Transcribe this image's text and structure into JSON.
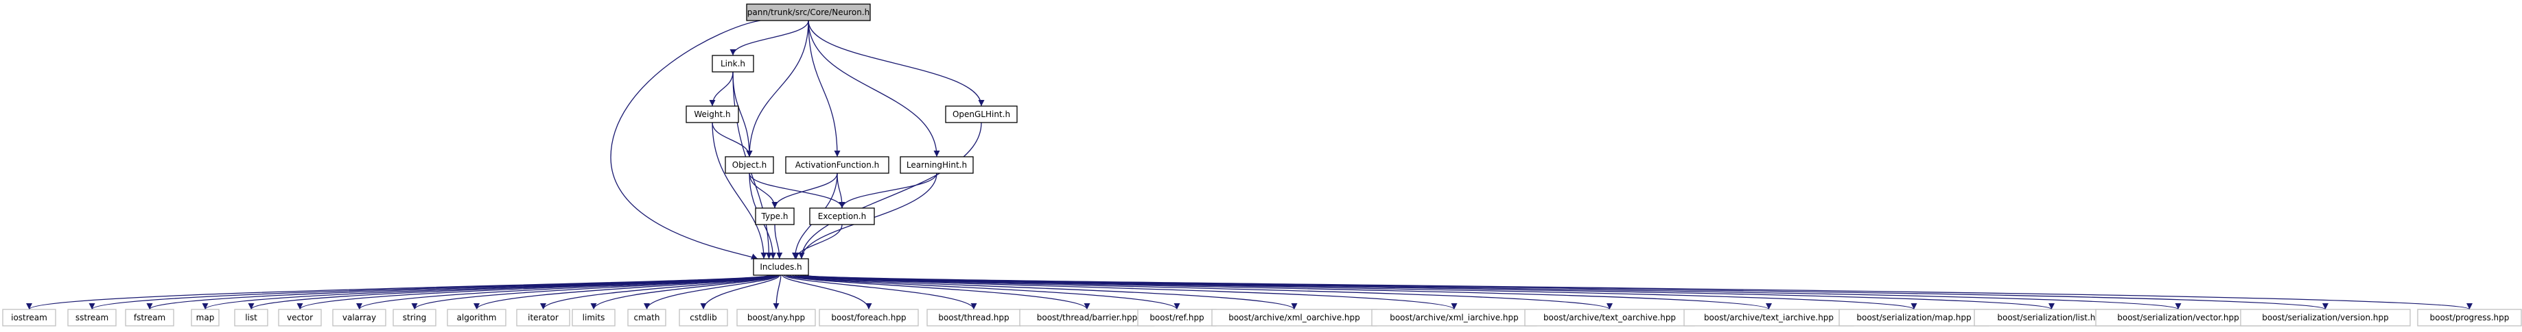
{
  "graph": {
    "root": "pann/trunk/src/Core/Neuron.h",
    "colors": {
      "edge": "#191970",
      "node_fill": "#ffffff",
      "node_stroke": "#000000",
      "external_stroke": "#bfbfbf",
      "root_fill": "#bfbfbf",
      "label": "#000000"
    },
    "nodes": [
      {
        "id": "root",
        "label": "pann/trunk/src/Core/Neuron.h",
        "kind": "root"
      },
      {
        "id": "link",
        "label": "Link.h",
        "kind": "file"
      },
      {
        "id": "opengl",
        "label": "OpenGLHint.h",
        "kind": "file"
      },
      {
        "id": "weight",
        "label": "Weight.h",
        "kind": "file"
      },
      {
        "id": "object",
        "label": "Object.h",
        "kind": "file"
      },
      {
        "id": "activation",
        "label": "ActivationFunction.h",
        "kind": "file"
      },
      {
        "id": "learning",
        "label": "LearningHint.h",
        "kind": "file"
      },
      {
        "id": "type",
        "label": "Type.h",
        "kind": "file"
      },
      {
        "id": "exception",
        "label": "Exception.h",
        "kind": "file"
      },
      {
        "id": "includes",
        "label": "Includes.h",
        "kind": "file"
      },
      {
        "id": "iostream",
        "label": "iostream",
        "kind": "external"
      },
      {
        "id": "sstream",
        "label": "sstream",
        "kind": "external"
      },
      {
        "id": "fstream",
        "label": "fstream",
        "kind": "external"
      },
      {
        "id": "map",
        "label": "map",
        "kind": "external"
      },
      {
        "id": "list",
        "label": "list",
        "kind": "external"
      },
      {
        "id": "vector",
        "label": "vector",
        "kind": "external"
      },
      {
        "id": "valarray",
        "label": "valarray",
        "kind": "external"
      },
      {
        "id": "string",
        "label": "string",
        "kind": "external"
      },
      {
        "id": "algorithm",
        "label": "algorithm",
        "kind": "external"
      },
      {
        "id": "iterator",
        "label": "iterator",
        "kind": "external"
      },
      {
        "id": "limits",
        "label": "limits",
        "kind": "external"
      },
      {
        "id": "cmath",
        "label": "cmath",
        "kind": "external"
      },
      {
        "id": "cstdlib",
        "label": "cstdlib",
        "kind": "external"
      },
      {
        "id": "any",
        "label": "boost/any.hpp",
        "kind": "external"
      },
      {
        "id": "foreach",
        "label": "boost/foreach.hpp",
        "kind": "external"
      },
      {
        "id": "thread",
        "label": "boost/thread.hpp",
        "kind": "external"
      },
      {
        "id": "barrier",
        "label": "boost/thread/barrier.hpp",
        "kind": "external"
      },
      {
        "id": "ref",
        "label": "boost/ref.hpp",
        "kind": "external"
      },
      {
        "id": "xmlo",
        "label": "boost/archive/xml_oarchive.hpp",
        "kind": "external"
      },
      {
        "id": "xmli",
        "label": "boost/archive/xml_iarchive.hpp",
        "kind": "external"
      },
      {
        "id": "texto",
        "label": "boost/archive/text_oarchive.hpp",
        "kind": "external"
      },
      {
        "id": "texti",
        "label": "boost/archive/text_iarchive.hpp",
        "kind": "external"
      },
      {
        "id": "sermap",
        "label": "boost/serialization/map.hpp",
        "kind": "external"
      },
      {
        "id": "serlist",
        "label": "boost/serialization/list.hpp",
        "kind": "external"
      },
      {
        "id": "servector",
        "label": "boost/serialization/vector.hpp",
        "kind": "external"
      },
      {
        "id": "serversion",
        "label": "boost/serialization/version.hpp",
        "kind": "external"
      },
      {
        "id": "progress",
        "label": "boost/progress.hpp",
        "kind": "external"
      }
    ],
    "edges": [
      {
        "from": "root",
        "to": "link"
      },
      {
        "from": "root",
        "to": "object"
      },
      {
        "from": "root",
        "to": "activation"
      },
      {
        "from": "root",
        "to": "learning"
      },
      {
        "from": "root",
        "to": "opengl"
      },
      {
        "from": "root",
        "to": "includes"
      },
      {
        "from": "link",
        "to": "weight"
      },
      {
        "from": "link",
        "to": "object"
      },
      {
        "from": "link",
        "to": "includes"
      },
      {
        "from": "weight",
        "to": "object"
      },
      {
        "from": "weight",
        "to": "includes"
      },
      {
        "from": "object",
        "to": "type"
      },
      {
        "from": "object",
        "to": "exception"
      },
      {
        "from": "object",
        "to": "includes"
      },
      {
        "from": "activation",
        "to": "type"
      },
      {
        "from": "activation",
        "to": "exception"
      },
      {
        "from": "activation",
        "to": "includes"
      },
      {
        "from": "learning",
        "to": "exception"
      },
      {
        "from": "learning",
        "to": "includes"
      },
      {
        "from": "opengl",
        "to": "includes"
      },
      {
        "from": "type",
        "to": "includes"
      },
      {
        "from": "exception",
        "to": "includes"
      },
      {
        "from": "includes",
        "to": "iostream"
      },
      {
        "from": "includes",
        "to": "sstream"
      },
      {
        "from": "includes",
        "to": "fstream"
      },
      {
        "from": "includes",
        "to": "map"
      },
      {
        "from": "includes",
        "to": "list"
      },
      {
        "from": "includes",
        "to": "vector"
      },
      {
        "from": "includes",
        "to": "valarray"
      },
      {
        "from": "includes",
        "to": "string"
      },
      {
        "from": "includes",
        "to": "algorithm"
      },
      {
        "from": "includes",
        "to": "iterator"
      },
      {
        "from": "includes",
        "to": "limits"
      },
      {
        "from": "includes",
        "to": "cmath"
      },
      {
        "from": "includes",
        "to": "cstdlib"
      },
      {
        "from": "includes",
        "to": "any"
      },
      {
        "from": "includes",
        "to": "foreach"
      },
      {
        "from": "includes",
        "to": "thread"
      },
      {
        "from": "includes",
        "to": "barrier"
      },
      {
        "from": "includes",
        "to": "ref"
      },
      {
        "from": "includes",
        "to": "xmlo"
      },
      {
        "from": "includes",
        "to": "xmli"
      },
      {
        "from": "includes",
        "to": "texto"
      },
      {
        "from": "includes",
        "to": "texti"
      },
      {
        "from": "includes",
        "to": "sermap"
      },
      {
        "from": "includes",
        "to": "serlist"
      },
      {
        "from": "includes",
        "to": "servector"
      },
      {
        "from": "includes",
        "to": "serversion"
      },
      {
        "from": "includes",
        "to": "progress"
      }
    ]
  }
}
